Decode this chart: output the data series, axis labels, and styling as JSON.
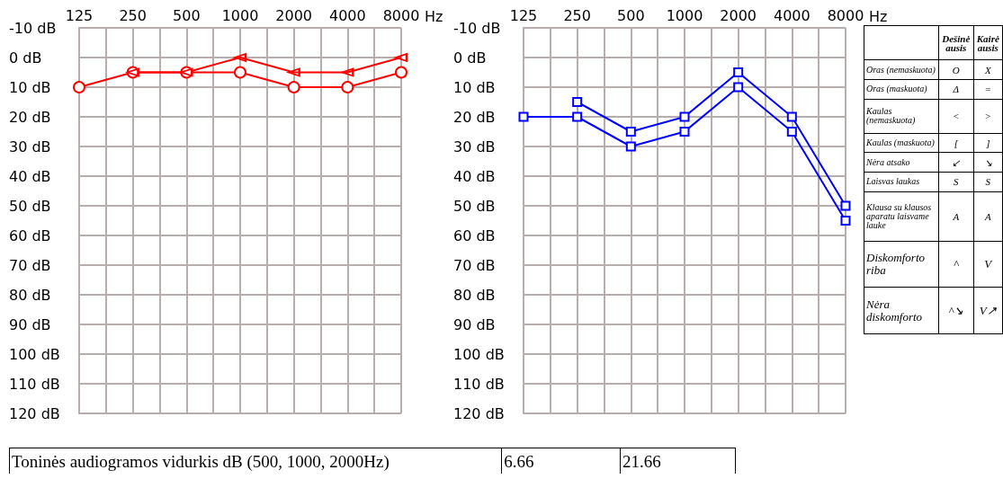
{
  "chart_data": [
    {
      "type": "line",
      "xlabel": "Hz",
      "categories": [
        "125",
        "250",
        "500",
        "1000",
        "2000",
        "4000",
        "8000"
      ],
      "ylim": [
        120,
        -10
      ],
      "yticks": [
        {
          "value": -10,
          "label": "-10 dB"
        },
        {
          "value": 0,
          "label": "0 dB"
        },
        {
          "value": 10,
          "label": "10 dB"
        },
        {
          "value": 20,
          "label": "20 dB"
        },
        {
          "value": 30,
          "label": "30 dB"
        },
        {
          "value": 40,
          "label": "40 dB"
        },
        {
          "value": 50,
          "label": "50 dB"
        },
        {
          "value": 60,
          "label": "60 dB"
        },
        {
          "value": 70,
          "label": "70 dB"
        },
        {
          "value": 80,
          "label": "80 dB"
        },
        {
          "value": 90,
          "label": "90 dB"
        },
        {
          "value": 100,
          "label": "100 dB"
        },
        {
          "value": 110,
          "label": "110 dB"
        },
        {
          "value": 120,
          "label": "120 dB"
        }
      ],
      "grid": true,
      "series": [
        {
          "color": "#ff0000",
          "marker": "circle",
          "values": [
            10,
            5,
            5,
            5,
            10,
            10,
            5
          ]
        },
        {
          "color": "#ff0000",
          "marker": "triangle",
          "values": [
            null,
            5,
            5,
            0,
            5,
            5,
            0
          ]
        }
      ]
    },
    {
      "type": "line",
      "xlabel": "Hz",
      "categories": [
        "125",
        "250",
        "500",
        "1000",
        "2000",
        "4000",
        "8000"
      ],
      "ylim": [
        120,
        -10
      ],
      "yticks": [
        {
          "value": -10,
          "label": "-10 dB"
        },
        {
          "value": 0,
          "label": "0 dB"
        },
        {
          "value": 10,
          "label": "10 dB"
        },
        {
          "value": 20,
          "label": "20 dB"
        },
        {
          "value": 30,
          "label": "30 dB"
        },
        {
          "value": 40,
          "label": "40 dB"
        },
        {
          "value": 50,
          "label": "50 dB"
        },
        {
          "value": 60,
          "label": "60 dB"
        },
        {
          "value": 70,
          "label": "70 dB"
        },
        {
          "value": 80,
          "label": "80 dB"
        },
        {
          "value": 90,
          "label": "90 dB"
        },
        {
          "value": 100,
          "label": "100 dB"
        },
        {
          "value": 110,
          "label": "110 dB"
        },
        {
          "value": 120,
          "label": "120 dB"
        }
      ],
      "grid": true,
      "series": [
        {
          "color": "#0000ff",
          "marker": "square",
          "values": [
            20,
            20,
            30,
            25,
            10,
            25,
            55
          ]
        },
        {
          "color": "#0000ff",
          "marker": "square",
          "values": [
            null,
            15,
            25,
            20,
            5,
            20,
            50
          ]
        }
      ]
    },
    {
      "type": "other",
      "annotations": [
        "Dešinė ausis",
        "Kairė ausis",
        "Oras (nemaskuota)",
        "O",
        "X",
        "Oras (maskuota)",
        "Δ",
        "=",
        "Kaulas (nemaskuota)",
        "<",
        ">",
        "Kaulas (maskuota)",
        "[",
        "]",
        "Nėra atsako",
        "↙",
        "↘",
        "Laisvas laukas",
        "S",
        "S",
        "Klausa su klausos aparatu laisvame lauke",
        "A",
        "A",
        "Diskomforto riba",
        "^",
        "V",
        "Nėra diskomforto",
        "^↘",
        "V↗"
      ]
    },
    {
      "type": "other",
      "annotations": [
        "Toninės audiogramos vidurkis dB (500, 1000, 2000Hz)",
        "6.66",
        "21.66"
      ]
    }
  ]
}
